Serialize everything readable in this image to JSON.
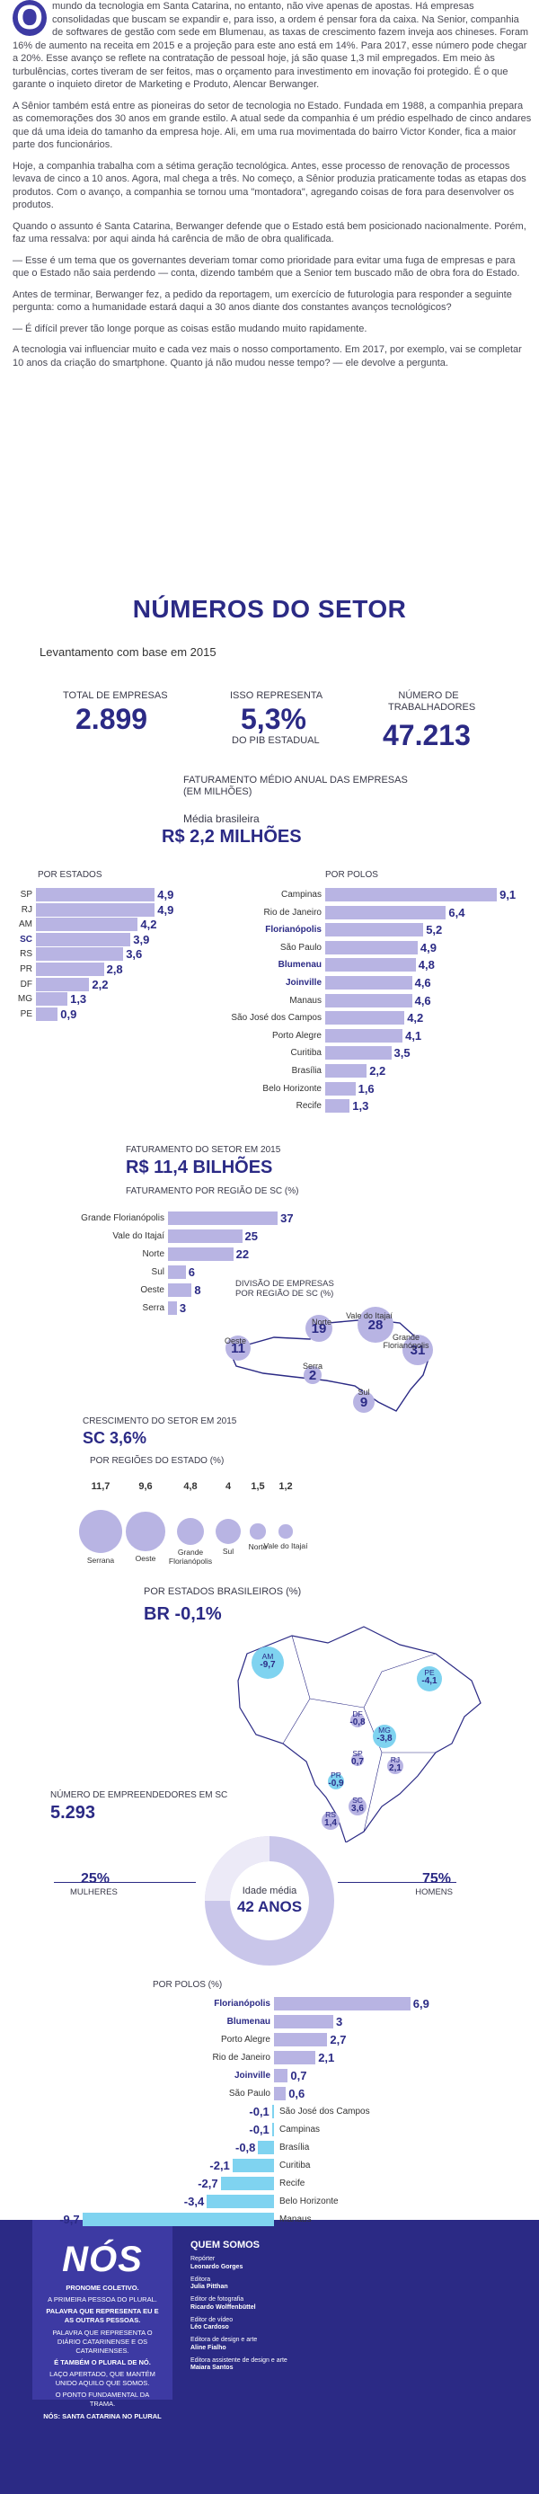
{
  "article": {
    "dropcap": "O",
    "p1": "mundo da tecnologia em Santa Catarina, no entanto, não vive apenas de apostas. Há empresas consolidadas que buscam se expandir e, para isso, a ordem é pensar fora da caixa. Na Senior, companhia de softwares de gestão com sede em Blumenau, as taxas de crescimento fazem inveja aos chineses. Foram 16% de aumento na receita em 2015 e a projeção para este ano está em 14%. Para 2017, esse número pode chegar a 20%. Esse avanço se reflete na contratação de pessoal hoje, já são quase 1,3 mil empregados. Em meio às turbulências, cortes tiveram de ser feitos, mas o orçamento para investimento em inovação foi protegido. É o que garante o inquieto diretor de Marketing e Produto, Alencar Berwanger.",
    "p2": "A Sênior também está entre as pioneiras do setor de tecnologia no Estado. Fundada em 1988, a companhia prepara as comemorações dos 30 anos em grande estilo. A atual sede da companhia é um prédio espelhado de cinco andares que dá uma ideia do tamanho da empresa hoje. Ali, em uma rua movimentada do bairro Victor Konder, fica a maior parte dos funcionários.",
    "p3": "Hoje, a companhia trabalha com a sétima geração tecnológica. Antes, esse processo de renovação de processos levava de cinco a 10 anos. Agora, mal chega a três. No começo, a Sênior produzia praticamente todas as etapas dos produtos. Com o avanço, a companhia se tornou uma \"montadora\", agregando coisas de fora para desenvolver os produtos.",
    "p4": "Quando o assunto é Santa Catarina, Berwanger defende que o Estado está bem posicionado nacionalmente. Porém, faz uma ressalva: por aqui ainda há carência de mão de obra qualificada.",
    "p5": "— Esse é um tema que os governantes deveriam tomar como prioridade para evitar uma fuga de empresas e para que o Estado não saia perdendo — conta, dizendo também que a Senior tem buscado mão de obra fora do Estado.",
    "p6": "Antes de terminar, Berwanger fez, a pedido da reportagem, um exercício de futurologia para responder a seguinte pergunta: como a humanidade estará daqui a 30 anos diante dos constantes avanços tecnológicos?",
    "p7": "— É difícil prever tão longe porque as coisas estão mudando muito rapidamente.",
    "p8": "A tecnologia vai influenciar muito e cada vez mais o nosso comportamento. Em 2017, por exemplo, vai se completar 10 anos da criação do smartphone. Quanto já não mudou nesse tempo? — ele devolve a pergunta."
  },
  "section": {
    "title": "NÚMEROS DO SETOR",
    "survey": "Levantamento com base em 2015"
  },
  "stats": {
    "total_label": "TOTAL DE EMPRESAS",
    "total_value": "2.899",
    "pib_label": "ISSO REPRESENTA",
    "pib_value": "5,3%",
    "pib_sub": "DO PIB ESTADUAL",
    "workers_label": "NÚMERO DE TRABALHADORES",
    "workers_value": "47.213"
  },
  "revenue": {
    "title": "FATURAMENTO MÉDIO ANUAL DAS EMPRESAS (EM MILHÕES)",
    "avg_label": "Média brasileira",
    "avg_value": "R$ 2,2 MILHÕES",
    "by_state_label": "POR ESTADOS",
    "by_city_label": "POR POLOS"
  },
  "sector_revenue": {
    "title": "FATURAMENTO DO SETOR EM 2015",
    "value": "R$ 11,4 BILHÕES",
    "by_region_label": "FATURAMENTO POR REGIÃO DE SC (%)",
    "division_label": "DIVISÃO DE EMPRESAS POR REGIÃO DE SC (%)"
  },
  "sc_map": {
    "regions": [
      {
        "name": "Norte",
        "value": "19"
      },
      {
        "name": "Vale do Itajaí",
        "value": "28"
      },
      {
        "name": "Oeste",
        "value": "11"
      },
      {
        "name": "Grande Florianópolis",
        "value": "31"
      },
      {
        "name": "Serra",
        "value": "2"
      },
      {
        "name": "Sul",
        "value": "9"
      }
    ]
  },
  "growth": {
    "title": "CRESCIMENTO DO SETOR EM 2015",
    "value": "SC 3,6%",
    "by_region_label": "POR REGIÕES DO ESTADO (%)",
    "bubbles": [
      {
        "value": "11,7",
        "label": "Serrana",
        "r": 11.7
      },
      {
        "value": "9,6",
        "label": "Oeste",
        "r": 9.6
      },
      {
        "value": "4,8",
        "label": "Grande Florianópolis",
        "r": 4.8
      },
      {
        "value": "4",
        "label": "Sul",
        "r": 4
      },
      {
        "value": "1,5",
        "label": "Norte",
        "r": 1.5
      },
      {
        "value": "1,2",
        "label": "Vale do Itajaí",
        "r": 1.2
      }
    ]
  },
  "br_map": {
    "title": "POR ESTADOS BRASILEIROS (%)",
    "value": "BR -0,1%",
    "states": [
      {
        "name": "AM",
        "value": "-9,7"
      },
      {
        "name": "PE",
        "value": "-4,1"
      },
      {
        "name": "DF",
        "value": "-0,8"
      },
      {
        "name": "MG",
        "value": "-3,8"
      },
      {
        "name": "SP",
        "value": "0,7"
      },
      {
        "name": "RJ",
        "value": "2,1"
      },
      {
        "name": "PR",
        "value": "-0,9"
      },
      {
        "name": "SC",
        "value": "3,6"
      },
      {
        "name": "RS",
        "value": "1,4"
      }
    ]
  },
  "entrepreneurs": {
    "title": "NÚMERO DE EMPREENDEDORES EM SC",
    "value": "5.293",
    "women_pct": "25%",
    "women_label": "MULHERES",
    "men_pct": "75%",
    "men_label": "HOMENS",
    "age_label": "Idade média",
    "age_value": "42 ANOS",
    "by_city_label": "POR POLOS (%)"
  },
  "chart_data": [
    {
      "type": "bar",
      "title": "POR ESTADOS",
      "categories": [
        "SP",
        "RJ",
        "AM",
        "SC",
        "RS",
        "PR",
        "DF",
        "MG",
        "PE"
      ],
      "values": [
        4.9,
        4.9,
        4.2,
        3.9,
        3.6,
        2.8,
        2.2,
        1.3,
        0.9
      ],
      "labels": [
        "4,9",
        "4,9",
        "4,2",
        "3,9",
        "3,6",
        "2,8",
        "2,2",
        "1,3",
        "0,9"
      ]
    },
    {
      "type": "bar",
      "title": "POR POLOS",
      "categories": [
        "Campinas",
        "Rio de Janeiro",
        "Florianópolis",
        "São Paulo",
        "Blumenau",
        "Joinville",
        "Manaus",
        "São José dos Campos",
        "Porto Alegre",
        "Curitiba",
        "Brasília",
        "Belo Horizonte",
        "Recife"
      ],
      "values": [
        9.1,
        6.4,
        5.2,
        4.9,
        4.8,
        4.6,
        4.6,
        4.2,
        4.1,
        3.5,
        2.2,
        1.6,
        1.3
      ],
      "labels": [
        "9,1",
        "6,4",
        "5,2",
        "4,9",
        "4,8",
        "4,6",
        "4,6",
        "4,2",
        "4,1",
        "3,5",
        "2,2",
        "1,6",
        "1,3"
      ]
    },
    {
      "type": "bar",
      "title": "FATURAMENTO POR REGIÃO DE SC (%)",
      "categories": [
        "Grande Florianópolis",
        "Vale do Itajaí",
        "Norte",
        "Sul",
        "Oeste",
        "Serra"
      ],
      "values": [
        37,
        25,
        22,
        6,
        8,
        3
      ],
      "labels": [
        "37",
        "25",
        "22",
        "6",
        "8",
        "3"
      ]
    },
    {
      "type": "bar",
      "title": "POR POLOS (%)",
      "categories": [
        "Florianópolis",
        "Blumenau",
        "Porto Alegre",
        "Rio de Janeiro",
        "Joinville",
        "São Paulo",
        "São José dos Campos",
        "Campinas",
        "Brasília",
        "Curitiba",
        "Recife",
        "Belo Horizonte",
        "Manaus"
      ],
      "values": [
        6.9,
        3,
        2.7,
        2.1,
        0.7,
        0.6,
        -0.1,
        -0.1,
        -0.8,
        -2.1,
        -2.7,
        -3.4,
        -9.7
      ],
      "labels": [
        "6,9",
        "3",
        "2,7",
        "2,1",
        "0,7",
        "0,6",
        "-0,1",
        "-0,1",
        "-0,8",
        "-2,1",
        "-2,7",
        "-3,4",
        "-9,7"
      ]
    },
    {
      "type": "pie",
      "title": "NÚMERO DE EMPREENDEDORES EM SC",
      "categories": [
        "MULHERES",
        "HOMENS"
      ],
      "values": [
        25,
        75
      ]
    }
  ],
  "footer": {
    "logo": "NÓS",
    "lines": [
      "PRONOME COLETIVO.",
      "A PRIMEIRA PESSOA DO PLURAL.",
      "PALAVRA QUE REPRESENTA EU E AS OUTRAS PESSOAS.",
      "PALAVRA QUE REPRESENTA O DIÁRIO CATARINENSE E OS CATARINENSES.",
      "É TAMBÉM O PLURAL DE NÓ.",
      "LAÇO APERTADO, QUE MANTÉM UNIDO AQUILO QUE SOMOS.",
      "O PONTO FUNDAMENTAL DA TRAMA.",
      "NÓS: SANTA CATARINA NO PLURAL"
    ],
    "credits_title": "QUEM SOMOS",
    "credits": [
      {
        "role": "Repórter",
        "name": "Leonardo Gorges"
      },
      {
        "role": "Editora",
        "name": "Julia Pitthan"
      },
      {
        "role": "Editor de fotografia",
        "name": "Ricardo Wolffenbüttel"
      },
      {
        "role": "Editor de vídeo",
        "name": "Léo Cardoso"
      },
      {
        "role": "Editora de design e arte",
        "name": "Aline Fialho"
      },
      {
        "role": "Editora assistente de design e arte",
        "name": "Maiara Santos"
      }
    ]
  },
  "colors": {
    "navy": "#2b2a85",
    "lavender": "#b8b4e3",
    "cyan": "#7fd3f0"
  }
}
